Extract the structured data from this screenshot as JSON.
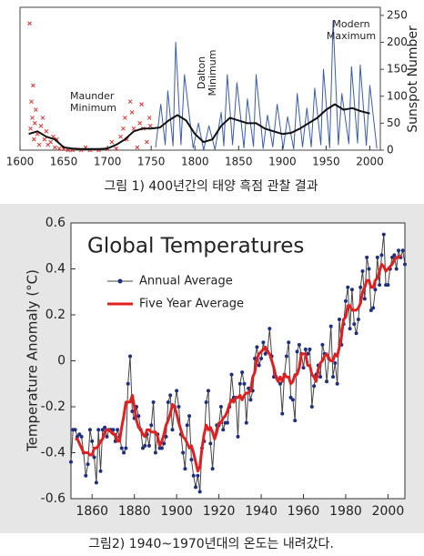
{
  "chart_data": [
    {
      "type": "line",
      "caption": "그림 1) 400년간의 태양 흑점 관찰 결과",
      "y_label": "Sunspot Number",
      "annotations": [
        [
          "Maunder",
          "Minimum"
        ],
        [
          "Dalton",
          "Minimum"
        ],
        [
          "Modern",
          "Maximum"
        ]
      ],
      "xlim": [
        1600,
        2012
      ],
      "ylim": [
        0,
        265
      ],
      "xticks": [
        1600,
        1650,
        1700,
        1750,
        1800,
        1850,
        1900,
        1950,
        2000
      ],
      "yticks": [
        0,
        50,
        100,
        150,
        200,
        250
      ],
      "series": [
        {
          "type": "scatter",
          "color": "#e03030",
          "x": [
            1611,
            1612,
            1613,
            1614,
            1615,
            1616,
            1617,
            1618,
            1620,
            1622,
            1624,
            1626,
            1628,
            1630,
            1632,
            1635,
            1638,
            1640,
            1642,
            1645,
            1650,
            1655,
            1660,
            1670,
            1675,
            1680,
            1690,
            1700,
            1705,
            1710,
            1715,
            1718,
            1720,
            1722,
            1726,
            1728,
            1730,
            1734,
            1737,
            1739,
            1741,
            1745,
            1748,
            1749
          ],
          "values": [
            235,
            40,
            90,
            60,
            120,
            20,
            50,
            75,
            30,
            10,
            45,
            60,
            20,
            35,
            10,
            15,
            25,
            5,
            20,
            3,
            2,
            0,
            0,
            0,
            5,
            0,
            0,
            2,
            15,
            3,
            25,
            40,
            60,
            20,
            90,
            70,
            40,
            5,
            50,
            85,
            40,
            15,
            60,
            45
          ]
        },
        {
          "type": "line",
          "color": "#3a5bb0",
          "width": 1,
          "x": [
            1755,
            1761,
            1766,
            1769,
            1775,
            1778,
            1784,
            1788,
            1798,
            1804,
            1810,
            1816,
            1823,
            1830,
            1833,
            1837,
            1843,
            1848,
            1856,
            1860,
            1867,
            1870,
            1878,
            1883,
            1889,
            1894,
            1901,
            1906,
            1913,
            1917,
            1923,
            1928,
            1933,
            1937,
            1944,
            1947,
            1954,
            1958,
            1964,
            1968,
            1976,
            1979,
            1986,
            1989,
            1996,
            2000,
            2008
          ],
          "values": [
            5,
            85,
            10,
            110,
            8,
            200,
            10,
            140,
            4,
            50,
            0,
            45,
            1,
            70,
            8,
            140,
            10,
            125,
            4,
            95,
            7,
            140,
            3,
            65,
            6,
            85,
            3,
            62,
            2,
            105,
            6,
            78,
            6,
            115,
            10,
            150,
            4,
            240,
            10,
            105,
            12,
            155,
            13,
            158,
            9,
            120,
            3
          ]
        },
        {
          "type": "line",
          "color": "#111111",
          "width": 2,
          "x": [
            1610,
            1620,
            1630,
            1640,
            1650,
            1660,
            1670,
            1680,
            1690,
            1700,
            1710,
            1720,
            1730,
            1740,
            1750,
            1760,
            1770,
            1780,
            1790,
            1800,
            1810,
            1820,
            1830,
            1840,
            1850,
            1860,
            1870,
            1880,
            1890,
            1900,
            1910,
            1920,
            1930,
            1940,
            1950,
            1960,
            1970,
            1980,
            1990,
            2000
          ],
          "values": [
            30,
            35,
            25,
            20,
            5,
            3,
            2,
            2,
            2,
            3,
            10,
            20,
            35,
            40,
            40,
            42,
            55,
            65,
            55,
            30,
            15,
            20,
            45,
            60,
            55,
            50,
            50,
            40,
            35,
            30,
            32,
            40,
            50,
            60,
            75,
            85,
            75,
            78,
            72,
            68
          ]
        }
      ]
    },
    {
      "type": "line",
      "caption": "그림2) 1940~1970년대의 온도는 내려갔다.",
      "title": "Global Temperatures",
      "y_label": "Temperature Anomaly (°C)",
      "xlim": [
        1850,
        2008
      ],
      "ylim": [
        -0.6,
        0.6
      ],
      "xticks": [
        1860,
        1880,
        1900,
        1920,
        1940,
        1960,
        1980,
        2000
      ],
      "yticks": [
        -0.6,
        -0.4,
        -0.2,
        0,
        0.2,
        0.4,
        0.6
      ],
      "x": [
        1850,
        1851,
        1852,
        1853,
        1854,
        1855,
        1856,
        1857,
        1858,
        1859,
        1860,
        1861,
        1862,
        1863,
        1864,
        1865,
        1866,
        1867,
        1868,
        1869,
        1870,
        1871,
        1872,
        1873,
        1874,
        1875,
        1876,
        1877,
        1878,
        1879,
        1880,
        1881,
        1882,
        1883,
        1884,
        1885,
        1886,
        1887,
        1888,
        1889,
        1890,
        1891,
        1892,
        1893,
        1894,
        1895,
        1896,
        1897,
        1898,
        1899,
        1900,
        1901,
        1902,
        1903,
        1904,
        1905,
        1906,
        1907,
        1908,
        1909,
        1910,
        1911,
        1912,
        1913,
        1914,
        1915,
        1916,
        1917,
        1918,
        1919,
        1920,
        1921,
        1922,
        1923,
        1924,
        1925,
        1926,
        1927,
        1928,
        1929,
        1930,
        1931,
        1932,
        1933,
        1934,
        1935,
        1936,
        1937,
        1938,
        1939,
        1940,
        1941,
        1942,
        1943,
        1944,
        1945,
        1946,
        1947,
        1948,
        1949,
        1950,
        1951,
        1952,
        1953,
        1954,
        1955,
        1956,
        1957,
        1958,
        1959,
        1960,
        1961,
        1962,
        1963,
        1964,
        1965,
        1966,
        1967,
        1968,
        1969,
        1970,
        1971,
        1972,
        1973,
        1974,
        1975,
        1976,
        1977,
        1978,
        1979,
        1980,
        1981,
        1982,
        1983,
        1984,
        1985,
        1986,
        1987,
        1988,
        1989,
        1990,
        1991,
        1992,
        1993,
        1994,
        1995,
        1996,
        1997,
        1998,
        1999,
        2000,
        2001,
        2002,
        2003,
        2004,
        2005,
        2006,
        2007,
        2008
      ],
      "series": [
        {
          "name": "Annual Average",
          "color": "#444444",
          "marker_color": "#1f2f80",
          "markers": true,
          "width": 1,
          "values": [
            -0.44,
            -0.3,
            -0.3,
            -0.33,
            -0.32,
            -0.33,
            -0.4,
            -0.5,
            -0.45,
            -0.3,
            -0.35,
            -0.42,
            -0.53,
            -0.3,
            -0.48,
            -0.3,
            -0.29,
            -0.33,
            -0.3,
            -0.3,
            -0.3,
            -0.35,
            -0.3,
            -0.33,
            -0.38,
            -0.4,
            -0.38,
            -0.1,
            0.02,
            -0.22,
            -0.25,
            -0.2,
            -0.24,
            -0.3,
            -0.38,
            -0.37,
            -0.32,
            -0.37,
            -0.28,
            -0.18,
            -0.4,
            -0.32,
            -0.38,
            -0.38,
            -0.36,
            -0.33,
            -0.18,
            -0.15,
            -0.3,
            -0.2,
            -0.13,
            -0.2,
            -0.32,
            -0.4,
            -0.47,
            -0.28,
            -0.24,
            -0.43,
            -0.5,
            -0.55,
            -0.5,
            -0.57,
            -0.38,
            -0.35,
            -0.18,
            -0.13,
            -0.36,
            -0.47,
            -0.33,
            -0.28,
            -0.28,
            -0.2,
            -0.3,
            -0.27,
            -0.27,
            -0.2,
            -0.06,
            -0.16,
            -0.16,
            -0.33,
            -0.1,
            -0.05,
            -0.1,
            -0.27,
            -0.12,
            -0.17,
            -0.13,
            0.01,
            0.06,
            -0.02,
            0.01,
            0.08,
            0.03,
            0.04,
            0.14,
            0.02,
            -0.07,
            -0.07,
            -0.08,
            -0.1,
            -0.23,
            -0.06,
            0.02,
            0.08,
            -0.16,
            -0.17,
            -0.26,
            0.04,
            0.07,
            0.03,
            -0.03,
            0.05,
            0.03,
            0.05,
            -0.2,
            -0.11,
            -0.06,
            -0.02,
            -0.07,
            0.07,
            0.03,
            -0.09,
            0.01,
            0.15,
            -0.07,
            -0.01,
            -0.1,
            0.18,
            0.07,
            0.16,
            0.26,
            0.32,
            0.14,
            0.31,
            0.16,
            0.12,
            0.18,
            0.32,
            0.39,
            0.27,
            0.45,
            0.4,
            0.22,
            0.23,
            0.31,
            0.45,
            0.33,
            0.46,
            0.55,
            0.33,
            0.33,
            0.4,
            0.45,
            0.46,
            0.4,
            0.48,
            0.45,
            0.48,
            0.42
          ]
        },
        {
          "name": "Five Year Average",
          "color": "#e02020",
          "markers": false,
          "width": 3,
          "values": [
            null,
            null,
            -0.34,
            -0.34,
            -0.36,
            -0.38,
            -0.4,
            -0.4,
            -0.4,
            -0.41,
            -0.41,
            -0.38,
            -0.38,
            -0.37,
            -0.35,
            -0.34,
            -0.31,
            -0.3,
            -0.3,
            -0.31,
            -0.32,
            -0.32,
            -0.35,
            -0.35,
            -0.29,
            -0.24,
            -0.18,
            -0.18,
            -0.18,
            -0.15,
            -0.2,
            -0.26,
            -0.29,
            -0.3,
            -0.32,
            -0.33,
            -0.3,
            -0.3,
            -0.31,
            -0.31,
            -0.31,
            -0.33,
            -0.37,
            -0.35,
            -0.32,
            -0.28,
            -0.26,
            -0.23,
            -0.19,
            -0.2,
            -0.23,
            -0.27,
            -0.3,
            -0.33,
            -0.34,
            -0.36,
            -0.38,
            -0.37,
            -0.4,
            -0.44,
            -0.48,
            -0.46,
            -0.38,
            -0.32,
            -0.28,
            -0.3,
            -0.29,
            -0.31,
            -0.34,
            -0.31,
            -0.27,
            -0.27,
            -0.25,
            -0.24,
            -0.22,
            -0.19,
            -0.17,
            -0.18,
            -0.16,
            -0.16,
            -0.15,
            -0.17,
            -0.15,
            -0.14,
            -0.14,
            -0.13,
            -0.07,
            -0.05,
            0.01,
            0.03,
            0.04,
            0.05,
            0.06,
            0.04,
            0.03,
            0.0,
            -0.03,
            -0.07,
            -0.09,
            -0.07,
            -0.09,
            -0.06,
            -0.07,
            -0.07,
            -0.1,
            -0.09,
            -0.06,
            -0.06,
            -0.03,
            0.03,
            0.03,
            0.03,
            -0.02,
            -0.02,
            -0.06,
            -0.07,
            -0.09,
            -0.04,
            -0.01,
            0.0,
            0.02,
            0.03,
            0.01,
            0.0,
            0.0,
            0.03,
            0.02,
            0.06,
            0.11,
            0.18,
            0.19,
            0.24,
            0.24,
            0.22,
            0.22,
            0.22,
            0.23,
            0.25,
            0.3,
            0.32,
            0.35,
            0.35,
            0.32,
            0.32,
            0.35,
            0.36,
            0.39,
            0.42,
            0.41,
            0.39,
            0.4,
            0.41,
            0.42,
            0.44,
            0.45,
            0.45,
            0.46,
            null,
            null
          ]
        }
      ]
    }
  ]
}
